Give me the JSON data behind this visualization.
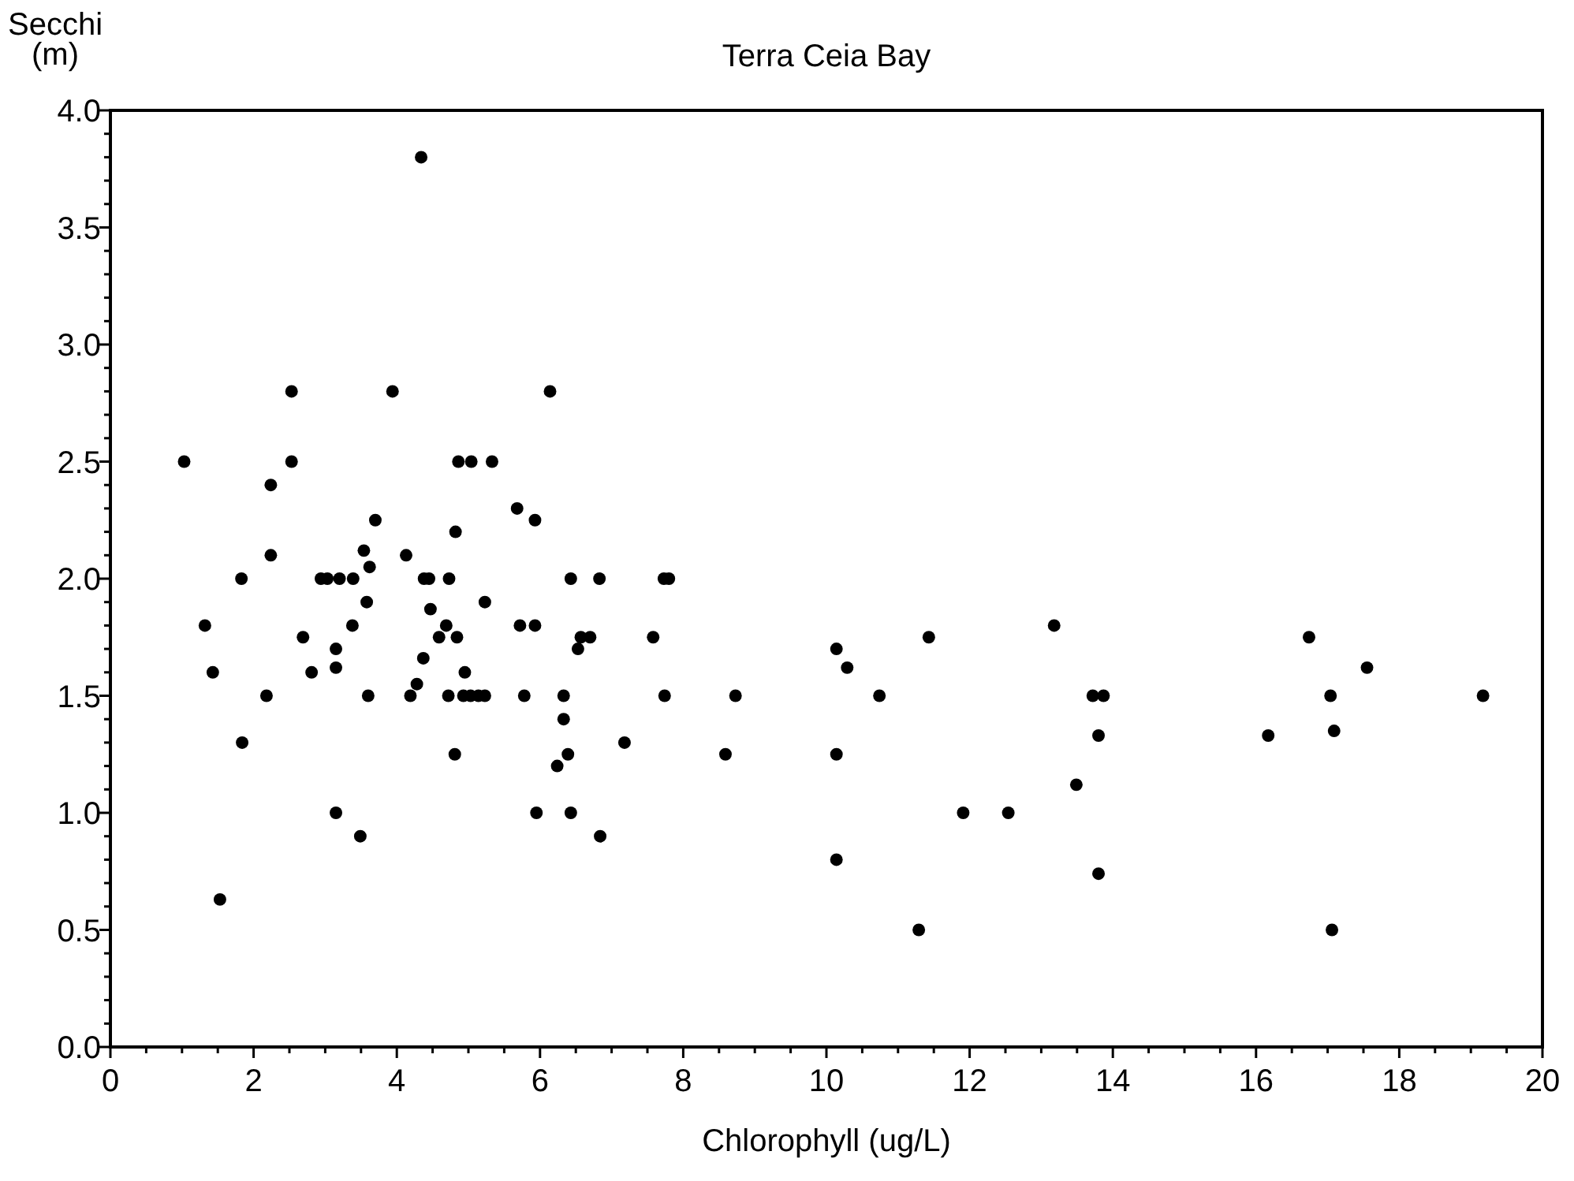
{
  "chart_data": {
    "type": "scatter",
    "title": "Terra Ceia Bay",
    "xlabel": "Chlorophyll (ug/L)",
    "ylabel": "Secchi (m)",
    "xlim": [
      0,
      20
    ],
    "ylim": [
      0,
      4
    ],
    "xticks": [
      0,
      {
        "value": 0.5,
        "label": null
      },
      {
        "value": 1,
        "label": null
      },
      {
        "value": 1.5,
        "label": null
      },
      2,
      {
        "value": 2.5,
        "label": null
      },
      {
        "value": 3,
        "label": null
      },
      {
        "value": 3.5,
        "label": null
      },
      4,
      {
        "value": 4.5,
        "label": null
      },
      {
        "value": 5,
        "label": null
      },
      {
        "value": 5.5,
        "label": null
      },
      6,
      {
        "value": 6.5,
        "label": null
      },
      {
        "value": 7,
        "label": null
      },
      {
        "value": 7.5,
        "label": null
      },
      8,
      {
        "value": 8.5,
        "label": null
      },
      {
        "value": 9,
        "label": null
      },
      {
        "value": 9.5,
        "label": null
      },
      10,
      {
        "value": 10.5,
        "label": null
      },
      {
        "value": 11,
        "label": null
      },
      {
        "value": 11.5,
        "label": null
      },
      12,
      {
        "value": 12.5,
        "label": null
      },
      {
        "value": 13,
        "label": null
      },
      {
        "value": 13.5,
        "label": null
      },
      14,
      {
        "value": 14.5,
        "label": null
      },
      {
        "value": 15,
        "label": null
      },
      {
        "value": 15.5,
        "label": null
      },
      16,
      {
        "value": 16.5,
        "label": null
      },
      {
        "value": 17,
        "label": null
      },
      {
        "value": 17.5,
        "label": null
      },
      18,
      {
        "value": 18.5,
        "label": null
      },
      {
        "value": 19,
        "label": null
      },
      {
        "value": 19.5,
        "label": null
      },
      20
    ],
    "yticks": [
      {
        "value": 0,
        "label": "0.0"
      },
      {
        "value": 0.1,
        "label": null
      },
      {
        "value": 0.2,
        "label": null
      },
      {
        "value": 0.3,
        "label": null
      },
      {
        "value": 0.4,
        "label": null
      },
      0.5,
      {
        "value": 0.6,
        "label": null
      },
      {
        "value": 0.7,
        "label": null
      },
      {
        "value": 0.8,
        "label": null
      },
      {
        "value": 0.9,
        "label": null
      },
      {
        "value": 1,
        "label": "1.0"
      },
      {
        "value": 1.1,
        "label": null
      },
      {
        "value": 1.2,
        "label": null
      },
      {
        "value": 1.3,
        "label": null
      },
      {
        "value": 1.4,
        "label": null
      },
      1.5,
      {
        "value": 1.6,
        "label": null
      },
      {
        "value": 1.7,
        "label": null
      },
      {
        "value": 1.8,
        "label": null
      },
      {
        "value": 1.9,
        "label": null
      },
      {
        "value": 2,
        "label": "2.0"
      },
      {
        "value": 2.1,
        "label": null
      },
      {
        "value": 2.2,
        "label": null
      },
      {
        "value": 2.3,
        "label": null
      },
      {
        "value": 2.4,
        "label": null
      },
      2.5,
      {
        "value": 2.6,
        "label": null
      },
      {
        "value": 2.7,
        "label": null
      },
      {
        "value": 2.8,
        "label": null
      },
      {
        "value": 2.9,
        "label": null
      },
      {
        "value": 3,
        "label": "3.0"
      },
      {
        "value": 3.1,
        "label": null
      },
      {
        "value": 3.2,
        "label": null
      },
      {
        "value": 3.3,
        "label": null
      },
      {
        "value": 3.4,
        "label": null
      },
      3.5,
      {
        "value": 3.6,
        "label": null
      },
      {
        "value": 3.7,
        "label": null
      },
      {
        "value": 3.8,
        "label": null
      },
      {
        "value": 3.9,
        "label": null
      },
      {
        "value": 4,
        "label": "4.0"
      }
    ],
    "grid": false,
    "marker": "circle",
    "series": [
      {
        "color": "#000000",
        "x": [
          1.03,
          2.53,
          3.94,
          2.53,
          2.24,
          3.7,
          4.82,
          4.86,
          5.04,
          5.33,
          2.24,
          3.54,
          3.62,
          4.13,
          1.83,
          2.94,
          3.03,
          3.2,
          3.39,
          4.38,
          4.45,
          4.73,
          3.58,
          5.23,
          4.47,
          1.32,
          3.38,
          4.69,
          2.69,
          4.59,
          4.84,
          3.15,
          3.15,
          4.37,
          1.43,
          2.81,
          4.95,
          2.18,
          3.6,
          4.19,
          4.28,
          4.72,
          4.93,
          5.03,
          5.14,
          5.23,
          1.84,
          4.81,
          3.15,
          3.49,
          1.53,
          4.34,
          6.14,
          5.68,
          5.93,
          6.43,
          6.83,
          7.73,
          7.8,
          5.72,
          5.93,
          6.57,
          6.7,
          6.53,
          7.58,
          5.78,
          6.33,
          7.74,
          8.73,
          6.33,
          7.18,
          6.39,
          6.24,
          8.59,
          5.95,
          6.43,
          6.84,
          10.14,
          10.29,
          10.74,
          11.43,
          13.18,
          13.72,
          13.87,
          13.8,
          13.49,
          13.8,
          10.14,
          10.14,
          11.29,
          11.91,
          12.54,
          16.74,
          17.55,
          17.04,
          19.17,
          16.17,
          17.09,
          17.06
        ],
        "values": [
          2.5,
          2.8,
          2.8,
          2.5,
          2.4,
          2.25,
          2.2,
          2.5,
          2.5,
          2.5,
          2.1,
          2.12,
          2.05,
          2.1,
          2.0,
          2.0,
          2.0,
          2.0,
          2.0,
          2.0,
          2.0,
          2.0,
          1.9,
          1.9,
          1.87,
          1.8,
          1.8,
          1.8,
          1.75,
          1.75,
          1.75,
          1.7,
          1.62,
          1.66,
          1.6,
          1.6,
          1.6,
          1.5,
          1.5,
          1.5,
          1.55,
          1.5,
          1.5,
          1.5,
          1.5,
          1.5,
          1.3,
          1.25,
          1.0,
          0.9,
          0.63,
          3.8,
          2.8,
          2.3,
          2.25,
          2.0,
          2.0,
          2.0,
          2.0,
          1.8,
          1.8,
          1.75,
          1.75,
          1.7,
          1.75,
          1.5,
          1.5,
          1.5,
          1.5,
          1.4,
          1.3,
          1.25,
          1.2,
          1.25,
          1.0,
          1.0,
          0.9,
          1.7,
          1.62,
          1.5,
          1.75,
          1.8,
          1.5,
          1.5,
          1.33,
          1.12,
          0.74,
          1.25,
          0.8,
          0.5,
          1.0,
          1.0,
          1.75,
          1.62,
          1.5,
          1.5,
          1.33,
          1.35,
          0.5
        ]
      }
    ]
  }
}
